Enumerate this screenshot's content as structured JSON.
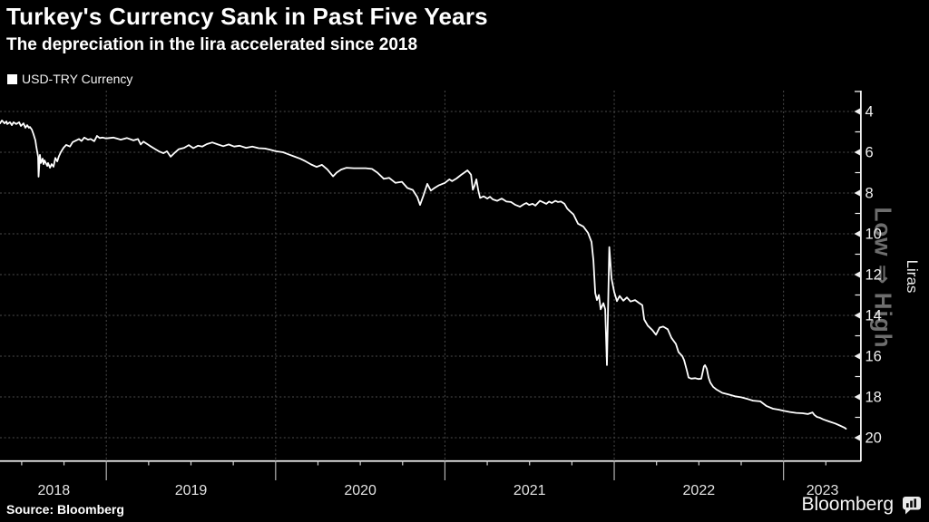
{
  "header": {
    "title": "Turkey's Currency Sank in Past Five Years",
    "subtitle": "The depreciation in the lira accelerated since 2018"
  },
  "legend": {
    "label": "USD-TRY Currency"
  },
  "footer": {
    "source": "Source: Bloomberg",
    "brand": "Bloomberg"
  },
  "chart_data": {
    "type": "line",
    "title": "Turkey's Currency Sank in Past Five Years",
    "subtitle": "The depreciation in the lira accelerated since 2018",
    "grid": true,
    "legend_position": "top-left",
    "y_inverted": true,
    "x_axis": {
      "min": 2018.372,
      "max": 2023.452,
      "boundaries": [
        2019,
        2020,
        2021,
        2022,
        2023
      ],
      "minor_ticks": [
        2018.5,
        2018.75,
        2019.25,
        2019.5,
        2019.75,
        2020.25,
        2020.5,
        2020.75,
        2021.25,
        2021.5,
        2021.75,
        2022.25,
        2022.5,
        2022.75,
        2023.25
      ],
      "year_labels": [
        {
          "text": "2018",
          "at": 2018.69
        },
        {
          "text": "2019",
          "at": 2019.5
        },
        {
          "text": "2020",
          "at": 2020.5
        },
        {
          "text": "2021",
          "at": 2021.5
        },
        {
          "text": "2022",
          "at": 2022.5
        },
        {
          "text": "2023",
          "at": 2023.23
        }
      ]
    },
    "y_axis": {
      "label": "Liras",
      "direction_label": "Low ⇒ High",
      "major_ticks": [
        4,
        6,
        8,
        10,
        12,
        14,
        16,
        18,
        20
      ],
      "minor_ticks": [
        5,
        7,
        9,
        11,
        13,
        15,
        17,
        19
      ],
      "range": [
        4,
        20
      ]
    },
    "colors": {
      "background": "#000000",
      "line": "#ffffff",
      "grid": "#4b4b4b",
      "axis": "#f0f0f0",
      "tick_label": "#efefef",
      "year_label": "#e3e3e3",
      "direction_label": "#6e6e6e"
    },
    "series": [
      {
        "name": "USD-TRY Currency",
        "points": [
          [
            2018.372,
            4.58
          ],
          [
            2018.383,
            4.44
          ],
          [
            2018.399,
            4.58
          ],
          [
            2018.41,
            4.49
          ],
          [
            2018.415,
            4.62
          ],
          [
            2018.431,
            4.53
          ],
          [
            2018.442,
            4.67
          ],
          [
            2018.452,
            4.53
          ],
          [
            2018.468,
            4.62
          ],
          [
            2018.485,
            4.53
          ],
          [
            2018.495,
            4.71
          ],
          [
            2018.511,
            4.58
          ],
          [
            2018.522,
            4.8
          ],
          [
            2018.533,
            4.67
          ],
          [
            2018.543,
            4.8
          ],
          [
            2018.549,
            4.76
          ],
          [
            2018.56,
            4.89
          ],
          [
            2018.57,
            5.11
          ],
          [
            2018.581,
            5.42
          ],
          [
            2018.586,
            5.69
          ],
          [
            2018.592,
            6.0
          ],
          [
            2018.597,
            6.22
          ],
          [
            2018.6,
            7.2
          ],
          [
            2018.608,
            6.13
          ],
          [
            2018.613,
            6.53
          ],
          [
            2018.624,
            6.31
          ],
          [
            2018.629,
            6.58
          ],
          [
            2018.635,
            6.4
          ],
          [
            2018.651,
            6.67
          ],
          [
            2018.656,
            6.53
          ],
          [
            2018.667,
            6.76
          ],
          [
            2018.677,
            6.58
          ],
          [
            2018.688,
            6.71
          ],
          [
            2018.699,
            6.28
          ],
          [
            2018.71,
            6.45
          ],
          [
            2018.72,
            6.2
          ],
          [
            2018.731,
            6.0
          ],
          [
            2018.747,
            5.78
          ],
          [
            2018.763,
            5.64
          ],
          [
            2018.785,
            5.72
          ],
          [
            2018.801,
            5.5
          ],
          [
            2018.822,
            5.42
          ],
          [
            2018.838,
            5.35
          ],
          [
            2018.854,
            5.45
          ],
          [
            2018.87,
            5.28
          ],
          [
            2018.892,
            5.38
          ],
          [
            2018.908,
            5.35
          ],
          [
            2018.929,
            5.46
          ],
          [
            2018.945,
            5.2
          ],
          [
            2018.961,
            5.3
          ],
          [
            2018.977,
            5.28
          ],
          [
            2018.999,
            5.32
          ],
          [
            2019.042,
            5.28
          ],
          [
            2019.085,
            5.38
          ],
          [
            2019.122,
            5.3
          ],
          [
            2019.16,
            5.42
          ],
          [
            2019.187,
            5.35
          ],
          [
            2019.203,
            5.62
          ],
          [
            2019.219,
            5.48
          ],
          [
            2019.256,
            5.68
          ],
          [
            2019.283,
            5.82
          ],
          [
            2019.31,
            5.95
          ],
          [
            2019.337,
            6.05
          ],
          [
            2019.358,
            5.95
          ],
          [
            2019.38,
            6.22
          ],
          [
            2019.401,
            6.05
          ],
          [
            2019.428,
            5.85
          ],
          [
            2019.46,
            5.78
          ],
          [
            2019.487,
            5.65
          ],
          [
            2019.514,
            5.8
          ],
          [
            2019.541,
            5.68
          ],
          [
            2019.567,
            5.72
          ],
          [
            2019.594,
            5.6
          ],
          [
            2019.626,
            5.52
          ],
          [
            2019.659,
            5.62
          ],
          [
            2019.691,
            5.7
          ],
          [
            2019.723,
            5.62
          ],
          [
            2019.755,
            5.72
          ],
          [
            2019.787,
            5.68
          ],
          [
            2019.825,
            5.78
          ],
          [
            2019.862,
            5.72
          ],
          [
            2019.9,
            5.8
          ],
          [
            2019.937,
            5.82
          ],
          [
            2019.969,
            5.88
          ],
          [
            2020.001,
            5.95
          ],
          [
            2020.044,
            6.0
          ],
          [
            2020.076,
            6.1
          ],
          [
            2020.113,
            6.22
          ],
          [
            2020.146,
            6.32
          ],
          [
            2020.178,
            6.45
          ],
          [
            2020.21,
            6.6
          ],
          [
            2020.242,
            6.72
          ],
          [
            2020.274,
            6.62
          ],
          [
            2020.306,
            6.85
          ],
          [
            2020.339,
            7.18
          ],
          [
            2020.36,
            7.0
          ],
          [
            2020.387,
            6.85
          ],
          [
            2020.419,
            6.76
          ],
          [
            2020.462,
            6.78
          ],
          [
            2020.532,
            6.78
          ],
          [
            2020.569,
            6.82
          ],
          [
            2020.601,
            7.0
          ],
          [
            2020.639,
            7.3
          ],
          [
            2020.671,
            7.26
          ],
          [
            2020.708,
            7.5
          ],
          [
            2020.746,
            7.45
          ],
          [
            2020.778,
            7.75
          ],
          [
            2020.81,
            7.85
          ],
          [
            2020.837,
            8.2
          ],
          [
            2020.853,
            8.58
          ],
          [
            2020.874,
            8.1
          ],
          [
            2020.896,
            7.55
          ],
          [
            2020.917,
            7.88
          ],
          [
            2020.939,
            7.75
          ],
          [
            2020.965,
            7.62
          ],
          [
            2021.0,
            7.5
          ],
          [
            2021.026,
            7.33
          ],
          [
            2021.042,
            7.42
          ],
          [
            2021.068,
            7.29
          ],
          [
            2021.095,
            7.11
          ],
          [
            2021.117,
            6.98
          ],
          [
            2021.133,
            6.89
          ],
          [
            2021.143,
            6.98
          ],
          [
            2021.154,
            7.1
          ],
          [
            2021.165,
            7.84
          ],
          [
            2021.175,
            7.64
          ],
          [
            2021.186,
            7.33
          ],
          [
            2021.197,
            7.87
          ],
          [
            2021.208,
            8.24
          ],
          [
            2021.229,
            8.16
          ],
          [
            2021.25,
            8.27
          ],
          [
            2021.266,
            8.18
          ],
          [
            2021.283,
            8.31
          ],
          [
            2021.309,
            8.38
          ],
          [
            2021.336,
            8.27
          ],
          [
            2021.363,
            8.42
          ],
          [
            2021.39,
            8.44
          ],
          [
            2021.416,
            8.58
          ],
          [
            2021.443,
            8.67
          ],
          [
            2021.464,
            8.56
          ],
          [
            2021.481,
            8.49
          ],
          [
            2021.497,
            8.58
          ],
          [
            2021.518,
            8.53
          ],
          [
            2021.534,
            8.62
          ],
          [
            2021.561,
            8.38
          ],
          [
            2021.577,
            8.44
          ],
          [
            2021.599,
            8.53
          ],
          [
            2021.615,
            8.42
          ],
          [
            2021.631,
            8.49
          ],
          [
            2021.652,
            8.38
          ],
          [
            2021.668,
            8.44
          ],
          [
            2021.685,
            8.42
          ],
          [
            2021.706,
            8.53
          ],
          [
            2021.722,
            8.76
          ],
          [
            2021.738,
            8.89
          ],
          [
            2021.759,
            9.05
          ],
          [
            2021.786,
            9.5
          ],
          [
            2021.818,
            9.65
          ],
          [
            2021.845,
            9.95
          ],
          [
            2021.866,
            10.4
          ],
          [
            2021.877,
            11.3
          ],
          [
            2021.888,
            12.9
          ],
          [
            2021.898,
            13.25
          ],
          [
            2021.909,
            13.0
          ],
          [
            2021.92,
            13.7
          ],
          [
            2021.936,
            13.4
          ],
          [
            2021.947,
            13.7
          ],
          [
            2021.957,
            16.44
          ],
          [
            2021.971,
            10.65
          ],
          [
            2021.984,
            12.2
          ],
          [
            2022.0,
            12.85
          ],
          [
            2022.016,
            13.3
          ],
          [
            2022.032,
            13.05
          ],
          [
            2022.054,
            13.28
          ],
          [
            2022.075,
            13.12
          ],
          [
            2022.096,
            13.32
          ],
          [
            2022.123,
            13.25
          ],
          [
            2022.145,
            13.38
          ],
          [
            2022.166,
            13.5
          ],
          [
            2022.177,
            14.2
          ],
          [
            2022.198,
            14.5
          ],
          [
            2022.225,
            14.72
          ],
          [
            2022.247,
            14.95
          ],
          [
            2022.268,
            14.6
          ],
          [
            2022.289,
            14.55
          ],
          [
            2022.316,
            14.68
          ],
          [
            2022.338,
            15.1
          ],
          [
            2022.364,
            15.4
          ],
          [
            2022.38,
            15.8
          ],
          [
            2022.402,
            16.0
          ],
          [
            2022.413,
            16.2
          ],
          [
            2022.429,
            16.7
          ],
          [
            2022.439,
            17.05
          ],
          [
            2022.455,
            17.1
          ],
          [
            2022.477,
            17.08
          ],
          [
            2022.498,
            17.12
          ],
          [
            2022.514,
            17.1
          ],
          [
            2022.53,
            16.5
          ],
          [
            2022.536,
            16.44
          ],
          [
            2022.547,
            16.62
          ],
          [
            2022.557,
            17.05
          ],
          [
            2022.568,
            17.3
          ],
          [
            2022.584,
            17.5
          ],
          [
            2022.605,
            17.64
          ],
          [
            2022.638,
            17.8
          ],
          [
            2022.675,
            17.88
          ],
          [
            2022.713,
            17.97
          ],
          [
            2022.75,
            18.02
          ],
          [
            2022.788,
            18.1
          ],
          [
            2022.82,
            18.18
          ],
          [
            2022.863,
            18.22
          ],
          [
            2022.9,
            18.45
          ],
          [
            2022.938,
            18.58
          ],
          [
            2022.97,
            18.62
          ],
          [
            2023.0,
            18.68
          ],
          [
            2023.037,
            18.74
          ],
          [
            2023.075,
            18.78
          ],
          [
            2023.112,
            18.8
          ],
          [
            2023.144,
            18.84
          ],
          [
            2023.171,
            18.76
          ],
          [
            2023.182,
            18.88
          ],
          [
            2023.198,
            18.98
          ],
          [
            2023.214,
            19.02
          ],
          [
            2023.235,
            19.1
          ],
          [
            2023.268,
            19.2
          ],
          [
            2023.305,
            19.3
          ],
          [
            2023.332,
            19.4
          ],
          [
            2023.359,
            19.5
          ],
          [
            2023.369,
            19.56
          ]
        ]
      }
    ]
  }
}
